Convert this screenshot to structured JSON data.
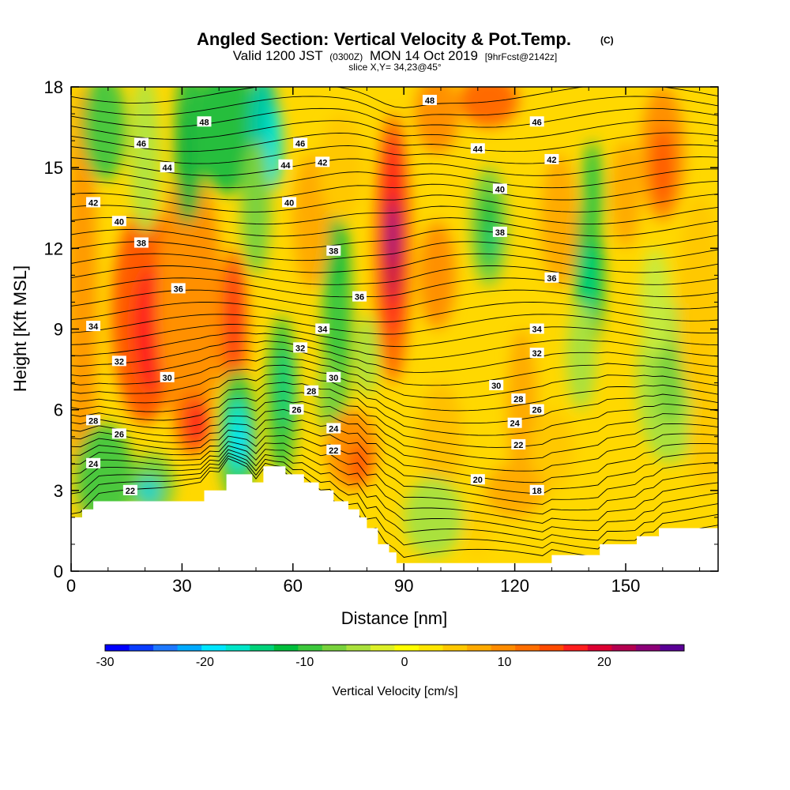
{
  "chart_data": {
    "type": "heatmap",
    "title": "Angled Section: Vertical Velocity & Pot.Temp.",
    "title_mark": "(C)",
    "subtitle": {
      "prefix": "Valid 1200 JST",
      "utc": "(0300Z)",
      "date": "MON 14 Oct 2019",
      "forecast": "[9hrFcst@2142z]"
    },
    "slice_text": "slice X,Y= 34,23@45°",
    "xlabel": "Distance [nm]",
    "ylabel": "Height [Kft MSL]",
    "xlim": [
      0,
      175
    ],
    "ylim": [
      0,
      18
    ],
    "x_ticks": [
      0,
      30,
      60,
      90,
      120,
      150
    ],
    "y_ticks": [
      0,
      3,
      6,
      9,
      12,
      15,
      18
    ],
    "colorbar": {
      "label": "Vertical Velocity [cm/s]",
      "ticks": [
        -30,
        -20,
        -10,
        0,
        10,
        20
      ],
      "range": [
        -30,
        28
      ],
      "colors": [
        "#0000ff",
        "#0a3cff",
        "#1e78ff",
        "#00aaff",
        "#00e6ff",
        "#00e6c8",
        "#00d27a",
        "#00be3c",
        "#3cc83c",
        "#78d23c",
        "#aae13c",
        "#dcf028",
        "#ffff00",
        "#ffe600",
        "#ffc800",
        "#ffaa00",
        "#ff8c00",
        "#ff6e00",
        "#ff4b00",
        "#ff1e1e",
        "#dc0032",
        "#b40050",
        "#8c0078",
        "#5a0096"
      ]
    },
    "theta_contour_labels": [
      {
        "label": "18",
        "x": 126,
        "h": 3.0
      },
      {
        "label": "20",
        "x": 110,
        "h": 3.4
      },
      {
        "label": "22",
        "x": 16,
        "h": 3.0
      },
      {
        "label": "22",
        "x": 71,
        "h": 4.5
      },
      {
        "label": "22",
        "x": 121,
        "h": 4.7
      },
      {
        "label": "24",
        "x": 6,
        "h": 4.0
      },
      {
        "label": "24",
        "x": 71,
        "h": 5.3
      },
      {
        "label": "24",
        "x": 120,
        "h": 5.5
      },
      {
        "label": "26",
        "x": 13,
        "h": 5.1
      },
      {
        "label": "26",
        "x": 61,
        "h": 6.0
      },
      {
        "label": "26",
        "x": 126,
        "h": 6.0
      },
      {
        "label": "28",
        "x": 6,
        "h": 5.6
      },
      {
        "label": "28",
        "x": 65,
        "h": 6.7
      },
      {
        "label": "28",
        "x": 121,
        "h": 6.4
      },
      {
        "label": "30",
        "x": 26,
        "h": 7.2
      },
      {
        "label": "30",
        "x": 71,
        "h": 7.2
      },
      {
        "label": "30",
        "x": 115,
        "h": 6.9
      },
      {
        "label": "32",
        "x": 13,
        "h": 7.8
      },
      {
        "label": "32",
        "x": 62,
        "h": 8.3
      },
      {
        "label": "32",
        "x": 126,
        "h": 8.1
      },
      {
        "label": "34",
        "x": 6,
        "h": 9.1
      },
      {
        "label": "34",
        "x": 68,
        "h": 9.0
      },
      {
        "label": "34",
        "x": 126,
        "h": 9.0
      },
      {
        "label": "36",
        "x": 29,
        "h": 10.5
      },
      {
        "label": "36",
        "x": 78,
        "h": 10.2
      },
      {
        "label": "36",
        "x": 130,
        "h": 10.9
      },
      {
        "label": "38",
        "x": 19,
        "h": 12.2
      },
      {
        "label": "38",
        "x": 71,
        "h": 11.9
      },
      {
        "label": "38",
        "x": 116,
        "h": 12.6
      },
      {
        "label": "40",
        "x": 13,
        "h": 13.0
      },
      {
        "label": "40",
        "x": 59,
        "h": 13.7
      },
      {
        "label": "40",
        "x": 116,
        "h": 14.2
      },
      {
        "label": "42",
        "x": 6,
        "h": 13.7
      },
      {
        "label": "42",
        "x": 68,
        "h": 15.2
      },
      {
        "label": "42",
        "x": 130,
        "h": 15.3
      },
      {
        "label": "44",
        "x": 26,
        "h": 15.0
      },
      {
        "label": "44",
        "x": 58,
        "h": 15.1
      },
      {
        "label": "44",
        "x": 110,
        "h": 15.7
      },
      {
        "label": "46",
        "x": 19,
        "h": 15.9
      },
      {
        "label": "46",
        "x": 62,
        "h": 15.9
      },
      {
        "label": "46",
        "x": 126,
        "h": 16.7
      },
      {
        "label": "48",
        "x": 36,
        "h": 16.7
      },
      {
        "label": "48",
        "x": 97,
        "h": 17.5
      }
    ],
    "terrain": [
      [
        0,
        2.0
      ],
      [
        3,
        2.0
      ],
      [
        3,
        2.3
      ],
      [
        6,
        2.3
      ],
      [
        6,
        2.6
      ],
      [
        36,
        2.6
      ],
      [
        36,
        3.0
      ],
      [
        42,
        3.0
      ],
      [
        42,
        3.6
      ],
      [
        49,
        3.6
      ],
      [
        49,
        3.3
      ],
      [
        52,
        3.3
      ],
      [
        52,
        3.9
      ],
      [
        58,
        3.9
      ],
      [
        58,
        3.6
      ],
      [
        63,
        3.6
      ],
      [
        63,
        3.3
      ],
      [
        67,
        3.3
      ],
      [
        67,
        3.0
      ],
      [
        71,
        3.0
      ],
      [
        71,
        2.6
      ],
      [
        75,
        2.6
      ],
      [
        75,
        2.3
      ],
      [
        78,
        2.3
      ],
      [
        78,
        2.0
      ],
      [
        80,
        2.0
      ],
      [
        80,
        1.6
      ],
      [
        83,
        1.6
      ],
      [
        83,
        1.0
      ],
      [
        86,
        1.0
      ],
      [
        86,
        0.7
      ],
      [
        88,
        0.7
      ],
      [
        88,
        0.3
      ],
      [
        130,
        0.3
      ],
      [
        130,
        0.6
      ],
      [
        143,
        0.6
      ],
      [
        143,
        1.0
      ],
      [
        153,
        1.0
      ],
      [
        153,
        1.3
      ],
      [
        159,
        1.3
      ],
      [
        159,
        1.6
      ],
      [
        175,
        1.6
      ]
    ]
  }
}
